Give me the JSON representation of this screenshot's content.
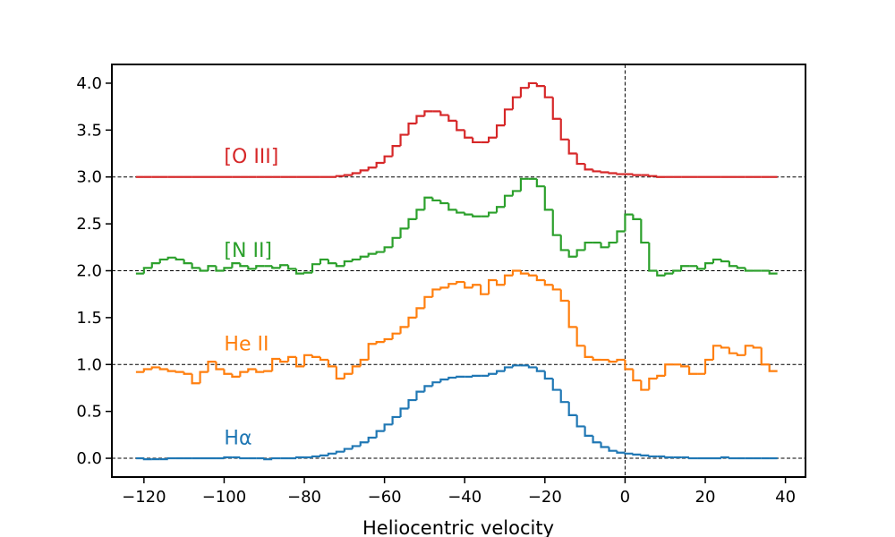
{
  "chart_data": {
    "type": "step",
    "xlabel": "Heliocentric velocity",
    "xlim": [
      -128,
      45
    ],
    "ylim": [
      -0.2,
      4.2
    ],
    "xticks": [
      {
        "value": -120,
        "label": "−120"
      },
      {
        "value": -100,
        "label": "−100"
      },
      {
        "value": -80,
        "label": "−80"
      },
      {
        "value": -60,
        "label": "−60"
      },
      {
        "value": -40,
        "label": "−40"
      },
      {
        "value": -20,
        "label": "−20"
      },
      0,
      20,
      40
    ],
    "yticks": [
      {
        "value": 0,
        "label": "0.0"
      },
      0.5,
      {
        "value": 1,
        "label": "1.0"
      },
      1.5,
      {
        "value": 2,
        "label": "2.0"
      },
      2.5,
      {
        "value": 3,
        "label": "3.0"
      },
      3.5,
      {
        "value": 4,
        "label": "4.0"
      }
    ],
    "hlines": [
      0,
      1,
      2,
      3
    ],
    "vlines": [
      0
    ],
    "x": [
      -121,
      -119,
      -117,
      -115,
      -113,
      -111,
      -109,
      -107,
      -105,
      -103,
      -101,
      -99,
      -97,
      -95,
      -93,
      -91,
      -89,
      -87,
      -85,
      -83,
      -81,
      -79,
      -77,
      -75,
      -73,
      -71,
      -69,
      -67,
      -65,
      -63,
      -61,
      -59,
      -57,
      -55,
      -53,
      -51,
      -49,
      -47,
      -45,
      -43,
      -41,
      -39,
      -37,
      -35,
      -33,
      -31,
      -29,
      -27,
      -25,
      -23,
      -21,
      -19,
      -17,
      -15,
      -13,
      -11,
      -9,
      -7,
      -5,
      -3,
      -1,
      1,
      3,
      5,
      7,
      9,
      11,
      13,
      15,
      17,
      19,
      21,
      23,
      25,
      27,
      29,
      31,
      33,
      35,
      37
    ],
    "series": [
      {
        "name": "Hα",
        "color": "#1f77b4",
        "values": [
          0,
          -0.01,
          -0.01,
          -0.01,
          0,
          0,
          0,
          0,
          0,
          0,
          0,
          0.01,
          0.01,
          0,
          0,
          0,
          -0.01,
          0,
          0,
          0,
          0.01,
          0.01,
          0.02,
          0.03,
          0.05,
          0.07,
          0.1,
          0.13,
          0.17,
          0.22,
          0.29,
          0.36,
          0.44,
          0.53,
          0.62,
          0.71,
          0.77,
          0.81,
          0.84,
          0.86,
          0.87,
          0.87,
          0.88,
          0.88,
          0.9,
          0.93,
          0.97,
          0.99,
          0.99,
          0.97,
          0.93,
          0.85,
          0.73,
          0.6,
          0.46,
          0.34,
          0.24,
          0.17,
          0.12,
          0.08,
          0.06,
          0.05,
          0.04,
          0.03,
          0.02,
          0.02,
          0.01,
          0.01,
          0.01,
          0,
          0,
          0,
          0,
          0.01,
          0,
          0,
          0,
          0,
          0,
          0
        ]
      },
      {
        "name": "He II",
        "color": "#ff7f0e",
        "values": [
          0.92,
          0.95,
          0.97,
          0.95,
          0.93,
          0.92,
          0.9,
          0.8,
          0.92,
          1.03,
          0.95,
          0.9,
          0.87,
          0.92,
          0.95,
          0.92,
          0.93,
          1.06,
          1.03,
          1.08,
          0.98,
          1.1,
          1.08,
          1.05,
          0.98,
          0.85,
          0.9,
          0.98,
          1.05,
          1.22,
          1.24,
          1.27,
          1.33,
          1.4,
          1.5,
          1.6,
          1.72,
          1.8,
          1.82,
          1.86,
          1.88,
          1.82,
          1.85,
          1.75,
          1.9,
          1.85,
          1.95,
          2.0,
          1.97,
          1.95,
          1.9,
          1.85,
          1.8,
          1.68,
          1.4,
          1.2,
          1.08,
          1.05,
          1.05,
          1.03,
          1.05,
          0.95,
          0.83,
          0.73,
          0.85,
          0.88,
          1.0,
          1.0,
          0.98,
          0.9,
          0.9,
          1.05,
          1.2,
          1.18,
          1.12,
          1.1,
          1.2,
          1.18,
          1.0,
          0.93
        ]
      },
      {
        "name": "[N II]",
        "color": "#2ca02c",
        "values": [
          1.97,
          2.03,
          2.08,
          2.12,
          2.14,
          2.12,
          2.08,
          2.03,
          2.0,
          2.05,
          2.0,
          2.03,
          2.08,
          2.05,
          2.02,
          2.05,
          2.05,
          2.03,
          2.06,
          2.02,
          1.97,
          1.98,
          2.07,
          2.12,
          2.08,
          2.05,
          2.1,
          2.12,
          2.15,
          2.18,
          2.2,
          2.25,
          2.35,
          2.45,
          2.55,
          2.65,
          2.78,
          2.75,
          2.72,
          2.65,
          2.62,
          2.6,
          2.58,
          2.58,
          2.62,
          2.68,
          2.8,
          2.85,
          2.98,
          2.98,
          2.9,
          2.65,
          2.38,
          2.22,
          2.15,
          2.22,
          2.3,
          2.3,
          2.25,
          2.3,
          2.42,
          2.6,
          2.55,
          2.3,
          2.0,
          1.95,
          1.97,
          2.0,
          2.05,
          2.05,
          2.02,
          2.08,
          2.12,
          2.1,
          2.05,
          2.03,
          2.0,
          2.0,
          2.0,
          1.97
        ]
      },
      {
        "name": "[O III]",
        "color": "#d62728",
        "values": [
          3,
          3,
          3,
          3,
          3,
          3,
          3,
          3,
          3,
          3,
          3,
          3,
          3,
          3,
          3,
          3,
          3,
          3,
          3,
          3,
          3,
          3,
          3,
          3,
          3,
          3.01,
          3.02,
          3.04,
          3.07,
          3.1,
          3.15,
          3.22,
          3.33,
          3.45,
          3.57,
          3.65,
          3.7,
          3.7,
          3.66,
          3.6,
          3.5,
          3.42,
          3.37,
          3.37,
          3.42,
          3.55,
          3.72,
          3.85,
          3.95,
          4.0,
          3.97,
          3.85,
          3.62,
          3.4,
          3.25,
          3.14,
          3.08,
          3.06,
          3.05,
          3.04,
          3.03,
          3.03,
          3.02,
          3.02,
          3.01,
          3,
          3,
          3,
          3,
          3,
          3,
          3,
          3,
          3,
          3,
          3,
          3,
          3,
          3,
          3
        ]
      }
    ]
  }
}
